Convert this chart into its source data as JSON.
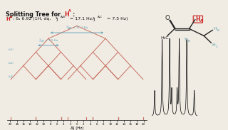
{
  "bg_color": "#f0ece4",
  "border_top_color": "#d4952a",
  "tree_line_color": "#c87060",
  "bracket_color": "#5a9db5",
  "text_color": "#111111",
  "red_color": "#cc2020",
  "J_AB": 17.1,
  "J_AC": 7.5,
  "title_normal": "Splitting Tree for ",
  "title_red": "H",
  "title_sub": "A",
  "subtitle_parts": [
    "H",
    "A",
    ": δₐ 6.92 (1H, dq, ",
    "³J",
    "A,B",
    " = 17.1 Hz, ",
    "³J",
    "A,C",
    " = 7.5 Hz)"
  ],
  "axis_label": "ΔJ (Hz)",
  "tick_labels": [
    "20",
    "18",
    "16",
    "14",
    "12",
    "10",
    "8",
    "6",
    "4",
    "2",
    "0",
    "2",
    "4",
    "6",
    "8",
    "10",
    "12",
    "14",
    "16",
    "18",
    "20"
  ],
  "tick_values": [
    -20,
    -18,
    -16,
    -14,
    -12,
    -10,
    -8,
    -6,
    -4,
    -2,
    0,
    2,
    4,
    6,
    8,
    10,
    12,
    14,
    16,
    18,
    20
  ]
}
